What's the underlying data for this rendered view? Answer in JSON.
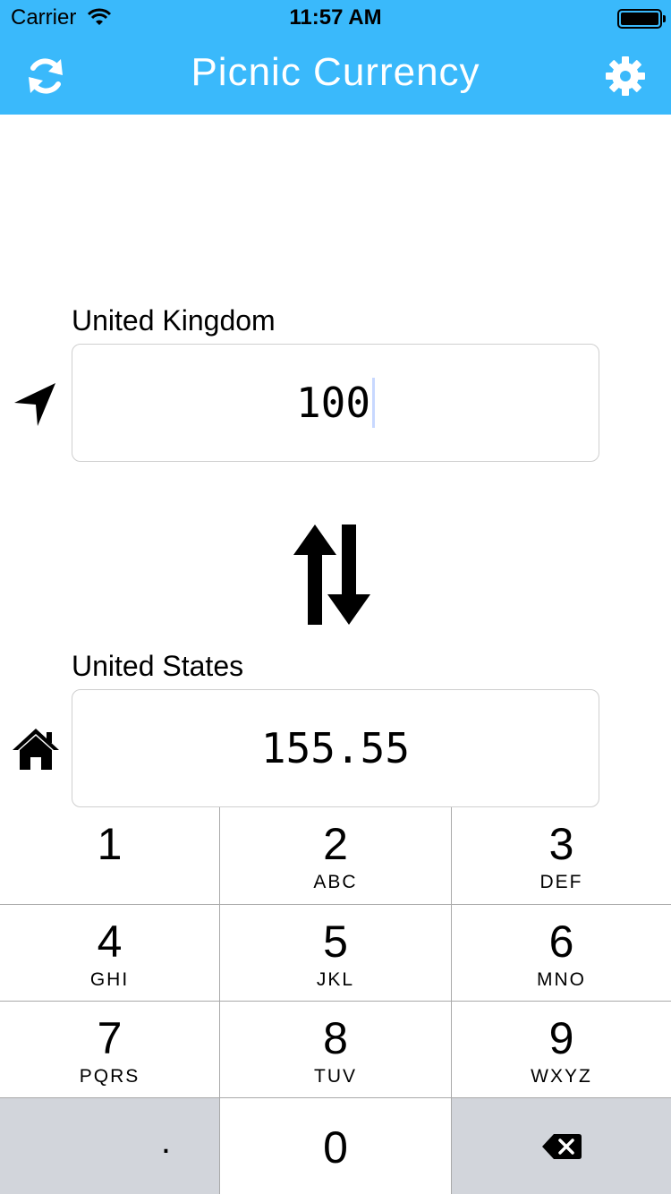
{
  "status": {
    "carrier": "Carrier",
    "time": "11:57 AM"
  },
  "nav": {
    "title": "Picnic Currency",
    "refresh_icon": "refresh-icon",
    "settings_icon": "gear-icon"
  },
  "converter": {
    "from": {
      "country": "United Kingdom",
      "amount": "100",
      "icon": "location-arrow-icon"
    },
    "to": {
      "country": "United States",
      "amount": "155.55",
      "icon": "home-icon"
    },
    "swap_icon": "swap-arrows-icon"
  },
  "keypad": {
    "keys": [
      {
        "digit": "1",
        "letters": ""
      },
      {
        "digit": "2",
        "letters": "ABC"
      },
      {
        "digit": "3",
        "letters": "DEF"
      },
      {
        "digit": "4",
        "letters": "GHI"
      },
      {
        "digit": "5",
        "letters": "JKL"
      },
      {
        "digit": "6",
        "letters": "MNO"
      },
      {
        "digit": "7",
        "letters": "PQRS"
      },
      {
        "digit": "8",
        "letters": "TUV"
      },
      {
        "digit": "9",
        "letters": "WXYZ"
      }
    ],
    "decimal": ".",
    "zero": "0",
    "delete_icon": "backspace-icon"
  },
  "colors": {
    "accent": "#3ab9fb",
    "keypad_gray": "#d2d5db"
  }
}
